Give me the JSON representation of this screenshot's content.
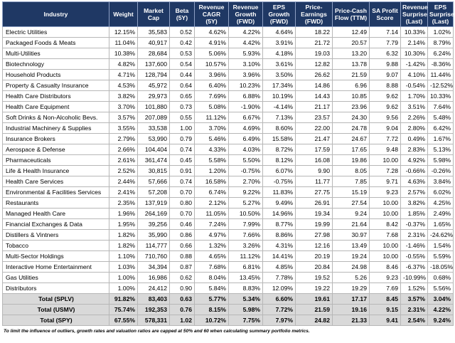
{
  "table": {
    "columns": [
      "Industry",
      "Weight",
      "Market Cap",
      "Beta (5Y)",
      "Revenue CAGR (5Y)",
      "Revenue Growth (FWD)",
      "EPS Growth (FWD)",
      "Price-Earnings (FWD)",
      "Price-Cash Flow (TTM)",
      "SA Profit Score",
      "Revenue Surprise (Last)",
      "EPS Surprise (Last)"
    ],
    "rows": [
      [
        "Electric Utilities",
        "12.15%",
        "35,583",
        "0.52",
        "4.62%",
        "4.22%",
        "4.64%",
        "18.22",
        "12.49",
        "7.14",
        "10.33%",
        "1.02%"
      ],
      [
        "Packaged Foods & Meats",
        "11.04%",
        "40,917",
        "0.42",
        "4.91%",
        "4.42%",
        "3.91%",
        "21.72",
        "20.57",
        "7.79",
        "2.14%",
        "8.79%"
      ],
      [
        "Multi-Utilities",
        "10.38%",
        "28,684",
        "0.53",
        "5.06%",
        "5.93%",
        "4.18%",
        "19.03",
        "13.20",
        "6.32",
        "10.30%",
        "6.24%"
      ],
      [
        "Biotechnology",
        "4.82%",
        "137,600",
        "0.54",
        "10.57%",
        "3.10%",
        "3.61%",
        "12.82",
        "13.78",
        "9.88",
        "-1.42%",
        "-8.36%"
      ],
      [
        "Household Products",
        "4.71%",
        "128,794",
        "0.44",
        "3.96%",
        "3.96%",
        "3.50%",
        "26.62",
        "21.59",
        "9.07",
        "4.10%",
        "11.44%"
      ],
      [
        "Property & Casualty Insurance",
        "4.53%",
        "45,972",
        "0.64",
        "6.40%",
        "10.23%",
        "17.34%",
        "14.86",
        "6.96",
        "8.88",
        "-0.54%",
        "-12.52%"
      ],
      [
        "Health Care Distributors",
        "3.82%",
        "29,973",
        "0.65",
        "7.69%",
        "6.88%",
        "10.19%",
        "14.43",
        "10.85",
        "9.62",
        "1.70%",
        "10.33%"
      ],
      [
        "Health Care Equipment",
        "3.70%",
        "101,880",
        "0.73",
        "5.08%",
        "-1.90%",
        "-4.14%",
        "21.17",
        "23.96",
        "9.62",
        "3.51%",
        "7.64%"
      ],
      [
        "Soft Drinks & Non-Alcoholic Bevs.",
        "3.57%",
        "207,089",
        "0.55",
        "11.12%",
        "6.67%",
        "7.13%",
        "23.57",
        "24.30",
        "9.56",
        "2.26%",
        "5.48%"
      ],
      [
        "Industrial Machinery & Supplies",
        "3.55%",
        "33,538",
        "1.00",
        "3.70%",
        "4.69%",
        "8.60%",
        "22.00",
        "24.78",
        "9.04",
        "2.80%",
        "6.42%"
      ],
      [
        "Insurance Brokers",
        "2.79%",
        "53,990",
        "0.79",
        "5.46%",
        "6.49%",
        "15.58%",
        "21.47",
        "24.67",
        "7.72",
        "0.49%",
        "1.67%"
      ],
      [
        "Aerospace & Defense",
        "2.66%",
        "104,404",
        "0.74",
        "4.33%",
        "4.03%",
        "8.72%",
        "17.59",
        "17.65",
        "9.48",
        "2.83%",
        "5.13%"
      ],
      [
        "Pharmaceuticals",
        "2.61%",
        "361,474",
        "0.45",
        "5.58%",
        "5.50%",
        "8.12%",
        "16.08",
        "19.86",
        "10.00",
        "4.92%",
        "5.98%"
      ],
      [
        "Life & Health Insurance",
        "2.52%",
        "30,815",
        "0.91",
        "1.20%",
        "-0.75%",
        "6.07%",
        "9.90",
        "8.05",
        "7.28",
        "-0.66%",
        "-0.26%"
      ],
      [
        "Health Care Services",
        "2.44%",
        "57,666",
        "0.74",
        "16.58%",
        "2.70%",
        "-0.75%",
        "11.77",
        "7.85",
        "9.71",
        "4.63%",
        "3.84%"
      ],
      [
        "Environmental & Facilities Services",
        "2.41%",
        "57,208",
        "0.70",
        "6.74%",
        "9.22%",
        "11.83%",
        "27.75",
        "15.19",
        "9.23",
        "2.57%",
        "6.02%"
      ],
      [
        "Restaurants",
        "2.35%",
        "137,919",
        "0.80",
        "2.12%",
        "5.27%",
        "9.49%",
        "26.91",
        "27.54",
        "10.00",
        "3.82%",
        "4.25%"
      ],
      [
        "Managed Health Care",
        "1.96%",
        "264,169",
        "0.70",
        "11.05%",
        "10.50%",
        "14.96%",
        "19.34",
        "9.24",
        "10.00",
        "1.85%",
        "2.49%"
      ],
      [
        "Financial Exchanges & Data",
        "1.95%",
        "39,256",
        "0.46",
        "7.24%",
        "7.99%",
        "8.77%",
        "19.99",
        "21.64",
        "8.42",
        "-0.37%",
        "1.65%"
      ],
      [
        "Distillers & Vintners",
        "1.82%",
        "35,990",
        "0.86",
        "4.97%",
        "7.66%",
        "8.86%",
        "27.98",
        "30.97",
        "7.68",
        "2.31%",
        "-24.62%"
      ],
      [
        "Tobacco",
        "1.82%",
        "114,777",
        "0.66",
        "1.32%",
        "3.26%",
        "4.31%",
        "12.16",
        "13.49",
        "10.00",
        "-1.46%",
        "1.54%"
      ],
      [
        "Multi-Sector Holdings",
        "1.10%",
        "710,760",
        "0.88",
        "4.65%",
        "11.12%",
        "14.41%",
        "20.19",
        "19.24",
        "10.00",
        "-0.55%",
        "5.59%"
      ],
      [
        "Interactive Home Entertainment",
        "1.03%",
        "34,394",
        "0.87",
        "7.68%",
        "6.81%",
        "4.85%",
        "20.84",
        "24.98",
        "8.46",
        "-6.37%",
        "-18.05%"
      ],
      [
        "Gas Utilities",
        "1.00%",
        "16,986",
        "0.62",
        "8.04%",
        "13.45%",
        "7.78%",
        "19.52",
        "5.26",
        "9.23",
        "-10.99%",
        "0.68%"
      ],
      [
        "Distributors",
        "1.00%",
        "24,412",
        "0.90",
        "5.84%",
        "8.83%",
        "12.09%",
        "19.22",
        "19.29",
        "7.69",
        "1.52%",
        "5.56%"
      ]
    ],
    "totals": [
      [
        "Total (SPLV)",
        "91.82%",
        "83,403",
        "0.63",
        "5.77%",
        "5.34%",
        "6.60%",
        "19.61",
        "17.17",
        "8.45",
        "3.57%",
        "3.04%"
      ],
      [
        "Total (USMV)",
        "75.74%",
        "192,353",
        "0.76",
        "8.15%",
        "5.98%",
        "7.72%",
        "21.59",
        "19.16",
        "9.15",
        "2.31%",
        "4.22%"
      ],
      [
        "Total (SPY)",
        "67.55%",
        "578,331",
        "1.02",
        "10.72%",
        "7.75%",
        "7.97%",
        "24.82",
        "21.33",
        "9.41",
        "2.54%",
        "9.24%"
      ]
    ]
  },
  "footnote": "To limit the influence of outliers, growth rates and valuation ratios are capped at 50% and 60 when calculating summary portfolio metrics."
}
